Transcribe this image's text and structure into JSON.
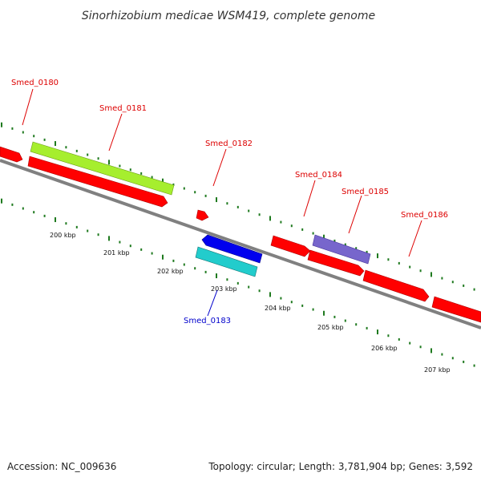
{
  "title": "Sinorhizobium medicae WSM419, complete genome",
  "footer": {
    "accession": "Accession: NC_009636",
    "summary": "Topology: circular; Length: 3,781,904 bp; Genes: 3,592"
  },
  "colors": {
    "backbone": "#808080",
    "tick": "#1f7a1f",
    "label_red": "#dd0000",
    "label_blue": "#0000cc"
  },
  "scale_labels": [
    "200 kbp",
    "201 kbp",
    "202 kbp",
    "203 kbp",
    "204 kbp",
    "205 kbp",
    "206 kbp",
    "207 kbp"
  ],
  "genes": [
    {
      "name": "Smed_0180",
      "color": "#ff0000",
      "label_color": "#dd0000"
    },
    {
      "name": "Smed_0181",
      "color": "#ff0000",
      "label_color": "#dd0000"
    },
    {
      "name": "Smed_0182",
      "color": "#ff0000",
      "label_color": "#dd0000"
    },
    {
      "name": "Smed_0183",
      "color": "#0000ee",
      "label_color": "#0000cc"
    },
    {
      "name": "Smed_0184",
      "color": "#ff0000",
      "label_color": "#dd0000"
    },
    {
      "name": "Smed_0185",
      "color": "#ff0000",
      "label_color": "#dd0000"
    },
    {
      "name": "Smed_0186",
      "color": "#ff0000",
      "label_color": "#dd0000"
    }
  ],
  "features": [
    {
      "type": "CDS",
      "color": "#a6ee2e"
    },
    {
      "type": "CDS",
      "color": "#22cccc"
    },
    {
      "type": "CDS",
      "color": "#7766cc"
    }
  ]
}
